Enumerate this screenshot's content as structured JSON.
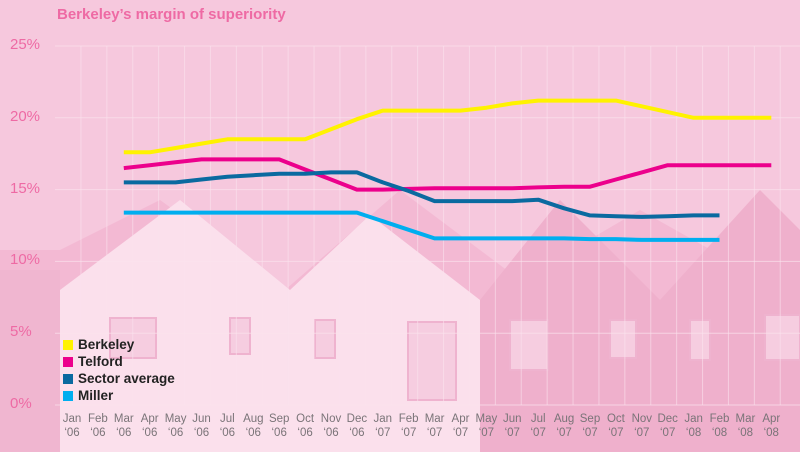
{
  "colors": {
    "background": "#f6c8dd",
    "title": "#ee6aa4",
    "berkeley": "#fff200",
    "telford": "#ec008c",
    "sector": "#0a6aa0",
    "miller": "#00aeef"
  },
  "chart_data": {
    "type": "line",
    "title": "Berkeley’s margin of superiority",
    "xlabel": "",
    "ylabel": "",
    "ylim": [
      0,
      25
    ],
    "y_ticks": [
      "0%",
      "5%",
      "10%",
      "15%",
      "20%",
      "25%"
    ],
    "y_tick_values": [
      0,
      5,
      10,
      15,
      20,
      25
    ],
    "grid": true,
    "legend_position": "bottom-left",
    "categories": [
      {
        "m": "Jan",
        "y": "‘06"
      },
      {
        "m": "Feb",
        "y": "‘06"
      },
      {
        "m": "Mar",
        "y": "‘06"
      },
      {
        "m": "Apr",
        "y": "‘06"
      },
      {
        "m": "May",
        "y": "‘06"
      },
      {
        "m": "Jun",
        "y": "‘06"
      },
      {
        "m": "Jul",
        "y": "‘06"
      },
      {
        "m": "Aug",
        "y": "‘06"
      },
      {
        "m": "Sep",
        "y": "‘06"
      },
      {
        "m": "Oct",
        "y": "‘06"
      },
      {
        "m": "Nov",
        "y": "‘06"
      },
      {
        "m": "Dec",
        "y": "‘06"
      },
      {
        "m": "Jan",
        "y": "‘07"
      },
      {
        "m": "Feb",
        "y": "‘07"
      },
      {
        "m": "Mar",
        "y": "‘07"
      },
      {
        "m": "Apr",
        "y": "‘07"
      },
      {
        "m": "May",
        "y": "‘07"
      },
      {
        "m": "Jun",
        "y": "‘07"
      },
      {
        "m": "Jul",
        "y": "‘07"
      },
      {
        "m": "Aug",
        "y": "‘07"
      },
      {
        "m": "Sep",
        "y": "‘07"
      },
      {
        "m": "Oct",
        "y": "‘07"
      },
      {
        "m": "Nov",
        "y": "‘07"
      },
      {
        "m": "Dec",
        "y": "‘07"
      },
      {
        "m": "Jan",
        "y": "‘08"
      },
      {
        "m": "Feb",
        "y": "‘08"
      },
      {
        "m": "Mar",
        "y": "‘08"
      },
      {
        "m": "Apr",
        "y": "‘08"
      }
    ],
    "series": [
      {
        "name": "Berkeley",
        "key": "berkeley",
        "values": [
          null,
          null,
          17.6,
          17.6,
          17.9,
          18.2,
          18.5,
          18.5,
          18.5,
          18.5,
          19.2,
          19.9,
          20.5,
          20.5,
          20.5,
          20.5,
          20.7,
          21.0,
          21.2,
          21.2,
          21.2,
          21.2,
          20.8,
          20.4,
          20.0,
          20.0,
          20.0,
          20.0
        ]
      },
      {
        "name": "Telford",
        "key": "telford",
        "values": [
          null,
          null,
          16.5,
          16.7,
          16.9,
          17.1,
          17.1,
          17.1,
          17.1,
          16.4,
          15.7,
          15.0,
          15.0,
          15.05,
          15.1,
          15.1,
          15.1,
          15.1,
          15.15,
          15.2,
          15.2,
          15.7,
          16.2,
          16.7,
          16.7,
          16.7,
          16.7,
          16.7
        ]
      },
      {
        "name": "Sector average",
        "key": "sector",
        "values": [
          null,
          null,
          15.5,
          15.5,
          15.5,
          15.7,
          15.9,
          16.0,
          16.1,
          16.1,
          16.2,
          16.2,
          15.5,
          14.9,
          14.2,
          14.2,
          14.2,
          14.2,
          14.3,
          13.7,
          13.2,
          13.15,
          13.1,
          13.15,
          13.2,
          13.2,
          null,
          null
        ]
      },
      {
        "name": "Miller",
        "key": "miller",
        "values": [
          null,
          null,
          13.4,
          13.4,
          13.4,
          13.4,
          13.4,
          13.4,
          13.4,
          13.4,
          13.4,
          13.4,
          12.8,
          12.2,
          11.6,
          11.6,
          11.6,
          11.6,
          11.6,
          11.6,
          11.55,
          11.55,
          11.5,
          11.5,
          11.5,
          11.5,
          null,
          null
        ]
      }
    ]
  }
}
